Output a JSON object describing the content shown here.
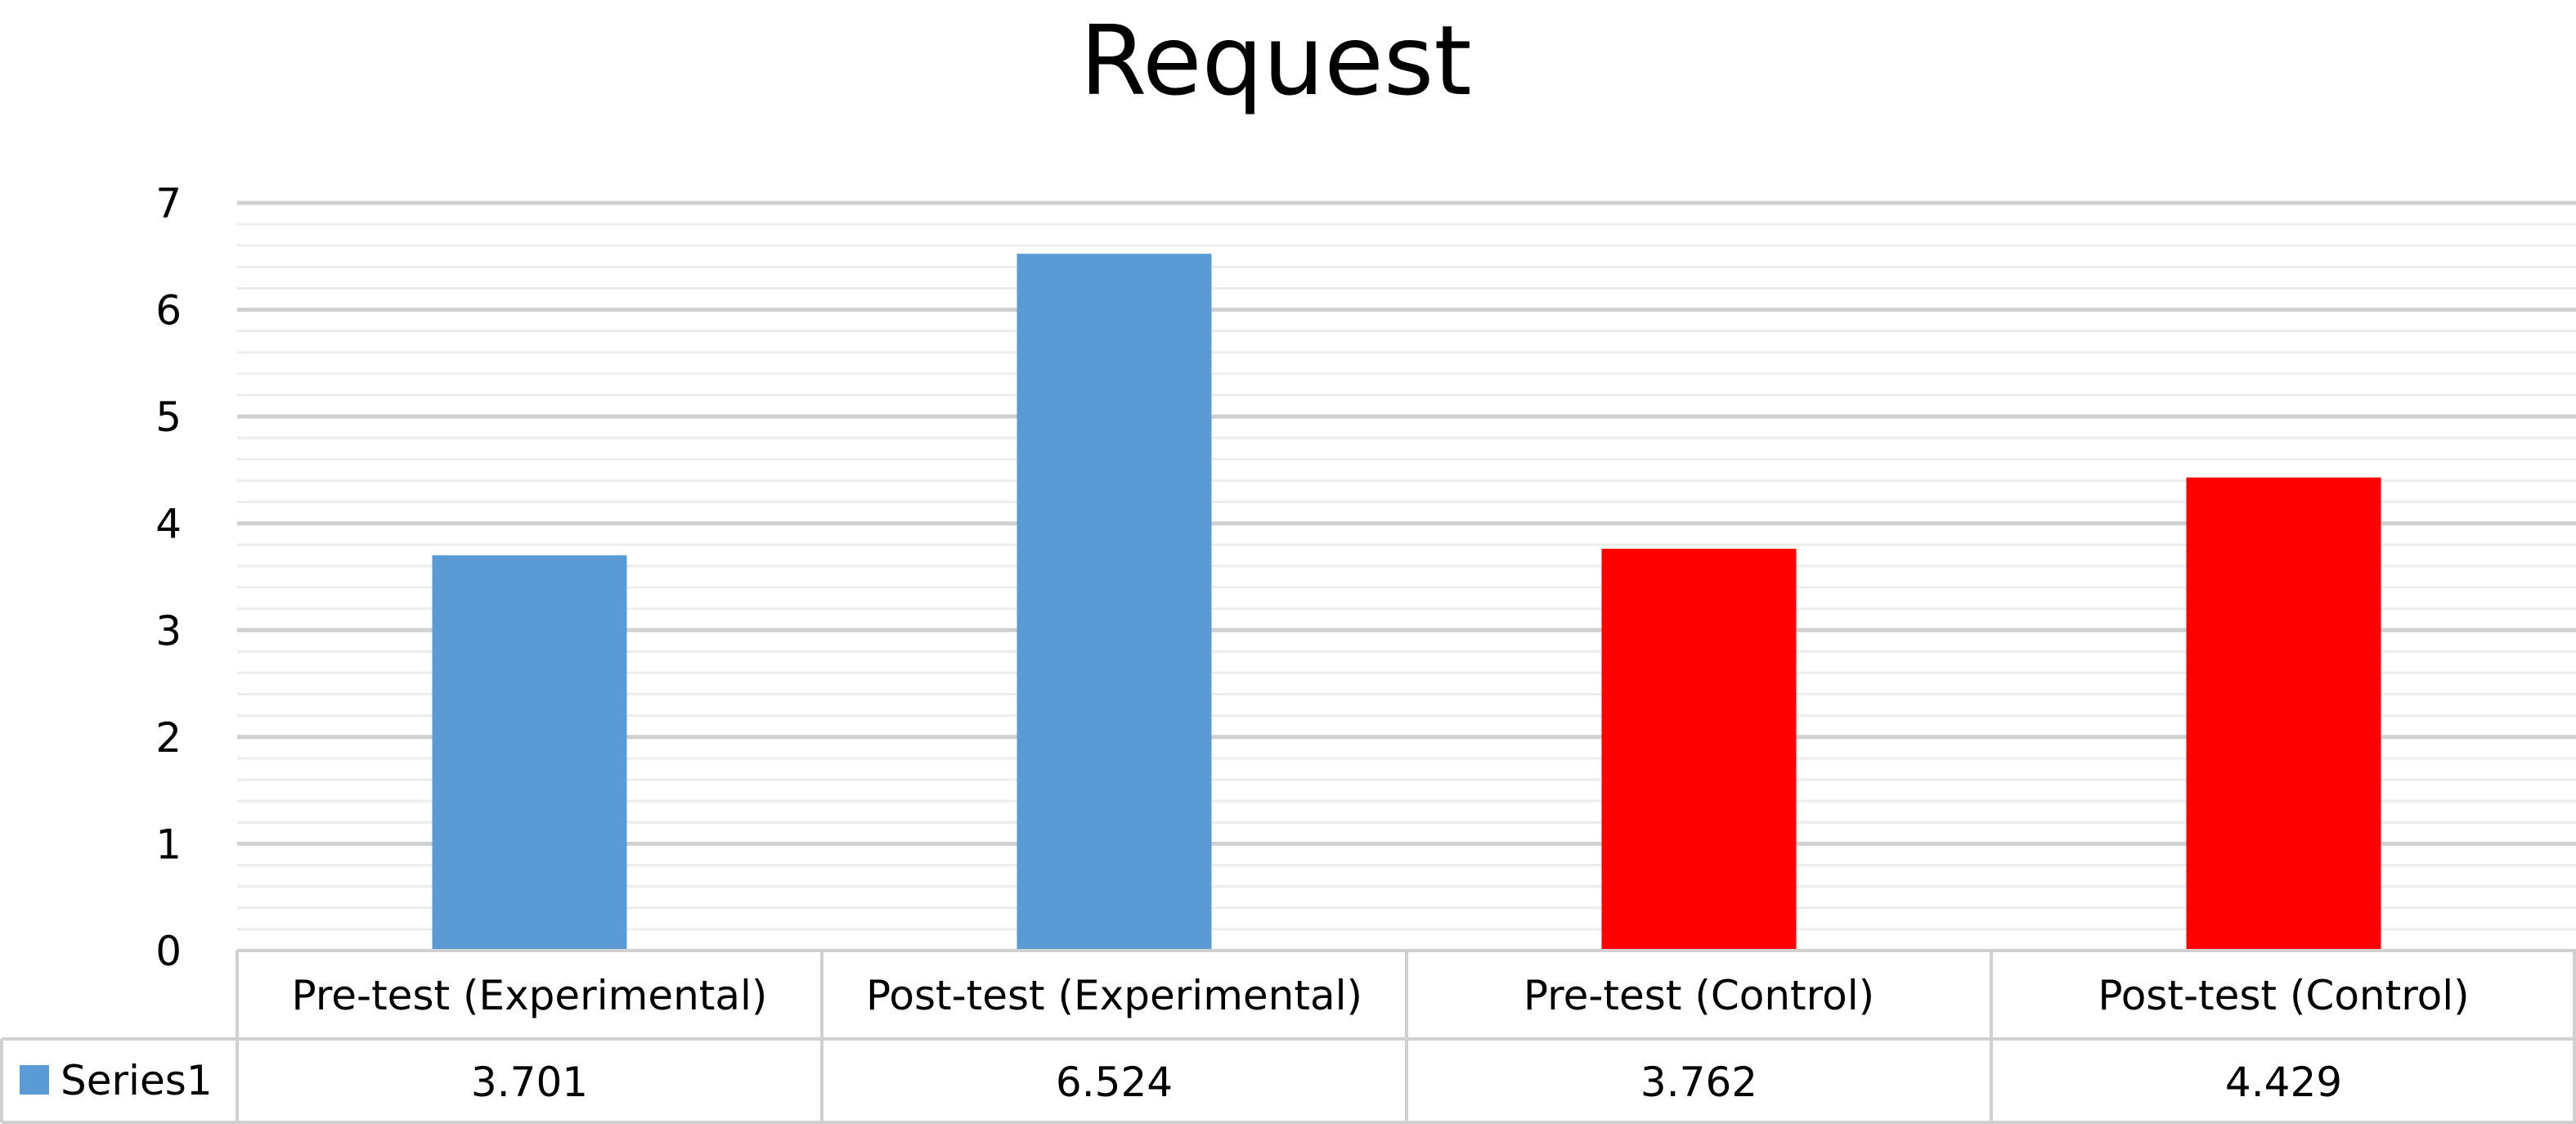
{
  "chart_data": {
    "type": "bar",
    "title": "Request",
    "categories": [
      "Pre-test (Experimental)",
      "Post-test (Experimental)",
      "Pre-test (Control)",
      "Post-test (Control)"
    ],
    "series": [
      {
        "name": "Series1",
        "values": [
          3.701,
          6.524,
          3.762,
          4.429
        ],
        "value_labels": [
          "3.701",
          "6.524",
          "3.762",
          "4.429"
        ],
        "colors": [
          "#5B9BD5",
          "#5B9BD5",
          "#FF0000",
          "#FF0000"
        ],
        "legend_color": "#5B9BD5"
      }
    ],
    "ylim": [
      0,
      7
    ],
    "yticks": [
      "0",
      "1",
      "2",
      "3",
      "4",
      "5",
      "6",
      "7"
    ],
    "grid": true,
    "data_table": true,
    "legend_placement": "in data table"
  }
}
